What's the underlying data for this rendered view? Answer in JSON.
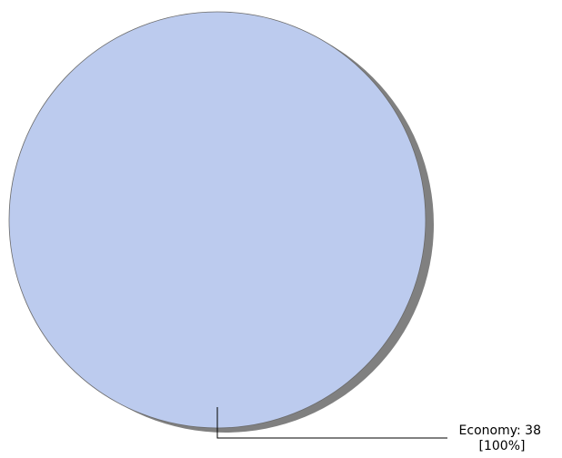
{
  "chart_data": {
    "type": "pie",
    "title": "",
    "slices": [
      {
        "label": "Economy",
        "value": 38,
        "percent": "100%",
        "label_text": "Economy: 38",
        "percent_text": "[100%]",
        "color": "#bccbee"
      }
    ],
    "shadow_color": "#808080",
    "outline_color": "#6a6a6a",
    "leader_color": "#000000",
    "legend": "none"
  }
}
